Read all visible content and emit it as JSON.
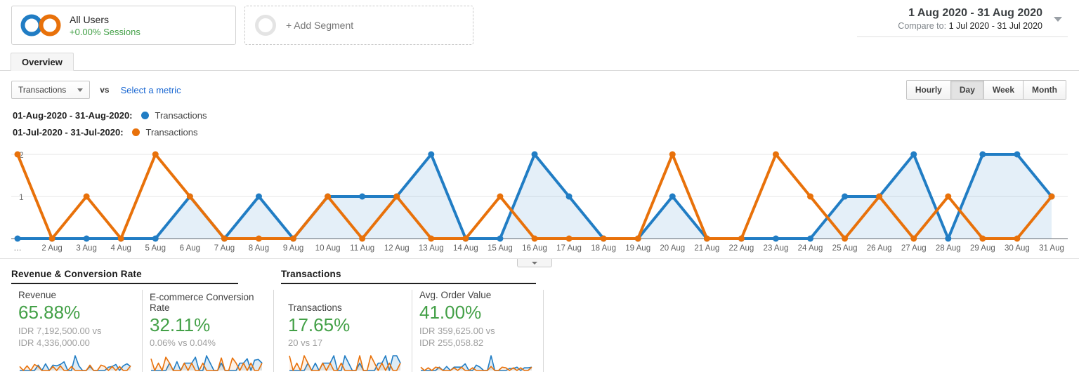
{
  "colors": {
    "current": "#217dc4",
    "previous": "#e8710a",
    "positive": "#43a047",
    "link": "#1967d2"
  },
  "header": {
    "segment": {
      "name": "All Users",
      "delta": "+0.00% Sessions"
    },
    "add_segment": "+ Add Segment",
    "date_range": {
      "primary": "1 Aug 2020 - 31 Aug 2020",
      "compare_prefix": "Compare to:",
      "compare": "1 Jul 2020 - 31 Jul 2020"
    }
  },
  "tabs": {
    "overview": "Overview"
  },
  "toolbar": {
    "metric_dropdown": "Transactions",
    "vs_label": "vs",
    "select_metric": "Select a metric",
    "granularity": [
      "Hourly",
      "Day",
      "Week",
      "Month"
    ],
    "granularity_active": "Day"
  },
  "legend": [
    {
      "label": "01-Aug-2020 - 31-Aug-2020:",
      "series": "Transactions",
      "color": "#217dc4"
    },
    {
      "label": "01-Jul-2020 - 31-Jul-2020:",
      "series": "Transactions",
      "color": "#e8710a"
    }
  ],
  "chart_data": {
    "type": "line",
    "title": "Transactions by day, current vs previous period",
    "x": [
      "…",
      "2 Aug",
      "3 Aug",
      "4 Aug",
      "5 Aug",
      "6 Aug",
      "7 Aug",
      "8 Aug",
      "9 Aug",
      "10 Aug",
      "11 Aug",
      "12 Aug",
      "13 Aug",
      "14 Aug",
      "15 Aug",
      "16 Aug",
      "17 Aug",
      "18 Aug",
      "19 Aug",
      "20 Aug",
      "21 Aug",
      "22 Aug",
      "23 Aug",
      "24 Aug",
      "25 Aug",
      "26 Aug",
      "27 Aug",
      "28 Aug",
      "29 Aug",
      "30 Aug",
      "31 Aug"
    ],
    "series": [
      {
        "name": "Transactions (01-Aug-2020 - 31-Aug-2020)",
        "color": "#217dc4",
        "fill": true,
        "values": [
          0,
          0,
          0,
          0,
          0,
          1,
          0,
          1,
          0,
          1,
          1,
          1,
          2,
          0,
          0,
          2,
          1,
          0,
          0,
          1,
          0,
          0,
          0,
          0,
          1,
          1,
          2,
          0,
          2,
          2,
          1
        ]
      },
      {
        "name": "Transactions (01-Jul-2020 - 31-Jul-2020)",
        "color": "#e8710a",
        "fill": false,
        "values": [
          2,
          0,
          1,
          0,
          2,
          1,
          0,
          0,
          0,
          1,
          0,
          1,
          0,
          0,
          1,
          0,
          0,
          0,
          0,
          2,
          0,
          0,
          2,
          1,
          0,
          1,
          0,
          1,
          0,
          0,
          1
        ]
      }
    ],
    "ylim": [
      0,
      2.17
    ],
    "yticks": [
      1,
      2
    ],
    "grid": true,
    "legend_position": "top-left"
  },
  "sections": [
    {
      "title": "Revenue & Conversion Rate",
      "cards": [
        {
          "label": "Revenue",
          "value": "65.88%",
          "sub": [
            "IDR 7,192,500.00 vs",
            "IDR 4,336,000.00"
          ],
          "sparkline": {
            "current": [
              0,
              0,
              0,
              0,
              0,
              0.8,
              0,
              1.0,
              0,
              0.8,
              0.7,
              0.9,
              1.3,
              0,
              0,
              2.2,
              0.7,
              0,
              0,
              0.6,
              0,
              0,
              0,
              0,
              0.5,
              0.6,
              0.9,
              0,
              0.7,
              1.0,
              0.6
            ],
            "previous": [
              0.6,
              0,
              0.7,
              0,
              0.9,
              0.6,
              0,
              0,
              0,
              0.6,
              0,
              0.7,
              0,
              0,
              0.6,
              0,
              0,
              0,
              0,
              0.8,
              0,
              0,
              0.8,
              0.6,
              0,
              0.6,
              0,
              0.6,
              0,
              0,
              0.7
            ]
          }
        },
        {
          "label": "E-commerce Conversion Rate",
          "value": "32.11%",
          "sub": [
            "0.06% vs 0.04%"
          ],
          "sparkline": {
            "current": [
              0,
              0,
              0,
              0,
              0,
              1,
              0,
              1.2,
              0,
              1,
              1,
              1,
              1.8,
              0,
              0,
              2,
              1,
              0,
              0,
              1,
              0,
              0,
              0,
              0,
              1,
              1,
              1.6,
              0,
              1.4,
              1.5,
              1
            ],
            "previous": [
              1.6,
              0,
              1,
              0,
              1.8,
              1,
              0,
              0,
              0,
              1,
              0,
              1,
              0,
              0,
              1,
              0,
              0,
              0,
              0,
              1.7,
              0,
              0,
              1.7,
              1,
              0,
              1,
              0,
              1,
              0,
              0,
              1
            ]
          }
        }
      ]
    },
    {
      "title": "Transactions",
      "cards": [
        {
          "label": "Transactions",
          "value": "17.65%",
          "sub": [
            "20 vs 17"
          ],
          "sparkline": {
            "current": [
              0,
              0,
              0,
              0,
              0,
              1,
              0,
              1,
              0,
              1,
              1,
              1,
              2,
              0,
              0,
              2,
              1,
              0,
              0,
              1,
              0,
              0,
              0,
              0,
              1,
              1,
              2,
              0,
              2,
              2,
              1
            ],
            "previous": [
              2,
              0,
              1,
              0,
              2,
              1,
              0,
              0,
              0,
              1,
              0,
              1,
              0,
              0,
              1,
              0,
              0,
              0,
              0,
              2,
              0,
              0,
              2,
              1,
              0,
              1,
              0,
              1,
              0,
              0,
              1
            ]
          }
        },
        {
          "label": "Avg. Order Value",
          "value": "41.00%",
          "sub": [
            "IDR 359,625.00 vs",
            "IDR 255,058.82"
          ],
          "sparkline": {
            "current": [
              0,
              0,
              0,
              0,
              0,
              0.5,
              0,
              0.6,
              0,
              0.5,
              0.5,
              0.5,
              1.0,
              0,
              0,
              0.8,
              0.5,
              0,
              0,
              2.2,
              0,
              0,
              0,
              0,
              0.3,
              0.3,
              0.5,
              0,
              0.4,
              0.4,
              0.5
            ],
            "previous": [
              0.5,
              0,
              0.4,
              0,
              0.5,
              0.4,
              0,
              0,
              0,
              0.4,
              0,
              0.5,
              0,
              0,
              0.4,
              0,
              0,
              0,
              0,
              0.6,
              0,
              0,
              0.5,
              0.4,
              0,
              0.4,
              0,
              0.4,
              0,
              0,
              0.5
            ]
          }
        }
      ]
    }
  ]
}
